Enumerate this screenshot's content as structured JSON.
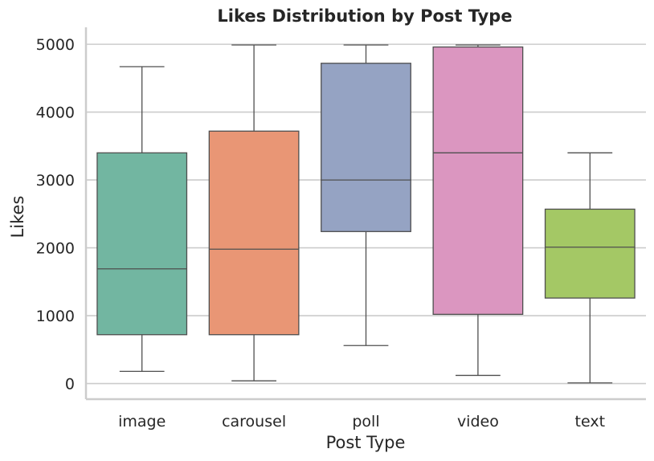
{
  "chart_data": {
    "type": "box",
    "title": "Likes Distribution by Post Type",
    "xlabel": "Post Type",
    "ylabel": "Likes",
    "ylim": [
      -230,
      5250
    ],
    "yticks": [
      "0",
      "1000",
      "2000",
      "3000",
      "4000",
      "5000"
    ],
    "grid": "horizontal",
    "categories": [
      "image",
      "carousel",
      "poll",
      "video",
      "text"
    ],
    "boxes": [
      {
        "category": "image",
        "whisker_low": 180,
        "q1": 720,
        "median": 1690,
        "q3": 3400,
        "whisker_high": 4670,
        "color": "#72b6a1"
      },
      {
        "category": "carousel",
        "whisker_low": 40,
        "q1": 720,
        "median": 1980,
        "q3": 3720,
        "whisker_high": 4990,
        "color": "#e99675"
      },
      {
        "category": "poll",
        "whisker_low": 560,
        "q1": 2240,
        "median": 3000,
        "q3": 4720,
        "whisker_high": 4990,
        "color": "#95a3c3"
      },
      {
        "category": "video",
        "whisker_low": 120,
        "q1": 1020,
        "median": 3400,
        "q3": 4960,
        "whisker_high": 4990,
        "color": "#db96c0"
      },
      {
        "category": "text",
        "whisker_low": 10,
        "q1": 1260,
        "median": 2010,
        "q3": 2570,
        "whisker_high": 3400,
        "color": "#a4c865"
      }
    ]
  }
}
